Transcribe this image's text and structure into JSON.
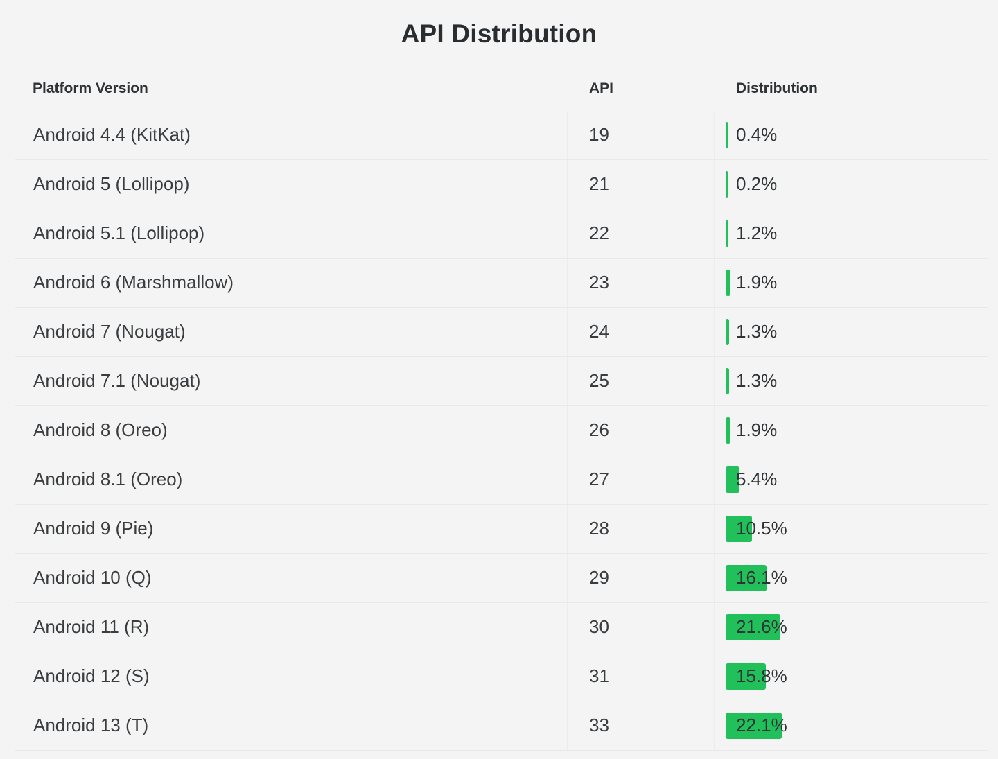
{
  "title": "API Distribution",
  "columns": {
    "platform": "Platform Version",
    "api": "API",
    "distribution": "Distribution"
  },
  "bar_color": "#22c05a",
  "rows": [
    {
      "platform": "Android 4.4 (KitKat)",
      "api": "19",
      "distribution": "0.4%",
      "value": 0.4
    },
    {
      "platform": "Android 5 (Lollipop)",
      "api": "21",
      "distribution": "0.2%",
      "value": 0.2
    },
    {
      "platform": "Android 5.1 (Lollipop)",
      "api": "22",
      "distribution": "1.2%",
      "value": 1.2
    },
    {
      "platform": "Android 6 (Marshmallow)",
      "api": "23",
      "distribution": "1.9%",
      "value": 1.9
    },
    {
      "platform": "Android 7 (Nougat)",
      "api": "24",
      "distribution": "1.3%",
      "value": 1.3
    },
    {
      "platform": "Android 7.1 (Nougat)",
      "api": "25",
      "distribution": "1.3%",
      "value": 1.3
    },
    {
      "platform": "Android 8 (Oreo)",
      "api": "26",
      "distribution": "1.9%",
      "value": 1.9
    },
    {
      "platform": "Android 8.1 (Oreo)",
      "api": "27",
      "distribution": "5.4%",
      "value": 5.4
    },
    {
      "platform": "Android 9 (Pie)",
      "api": "28",
      "distribution": "10.5%",
      "value": 10.5
    },
    {
      "platform": "Android 10 (Q)",
      "api": "29",
      "distribution": "16.1%",
      "value": 16.1
    },
    {
      "platform": "Android 11 (R)",
      "api": "30",
      "distribution": "21.6%",
      "value": 21.6
    },
    {
      "platform": "Android 12 (S)",
      "api": "31",
      "distribution": "15.8%",
      "value": 15.8
    },
    {
      "platform": "Android 13 (T)",
      "api": "33",
      "distribution": "22.1%",
      "value": 22.1
    }
  ]
}
